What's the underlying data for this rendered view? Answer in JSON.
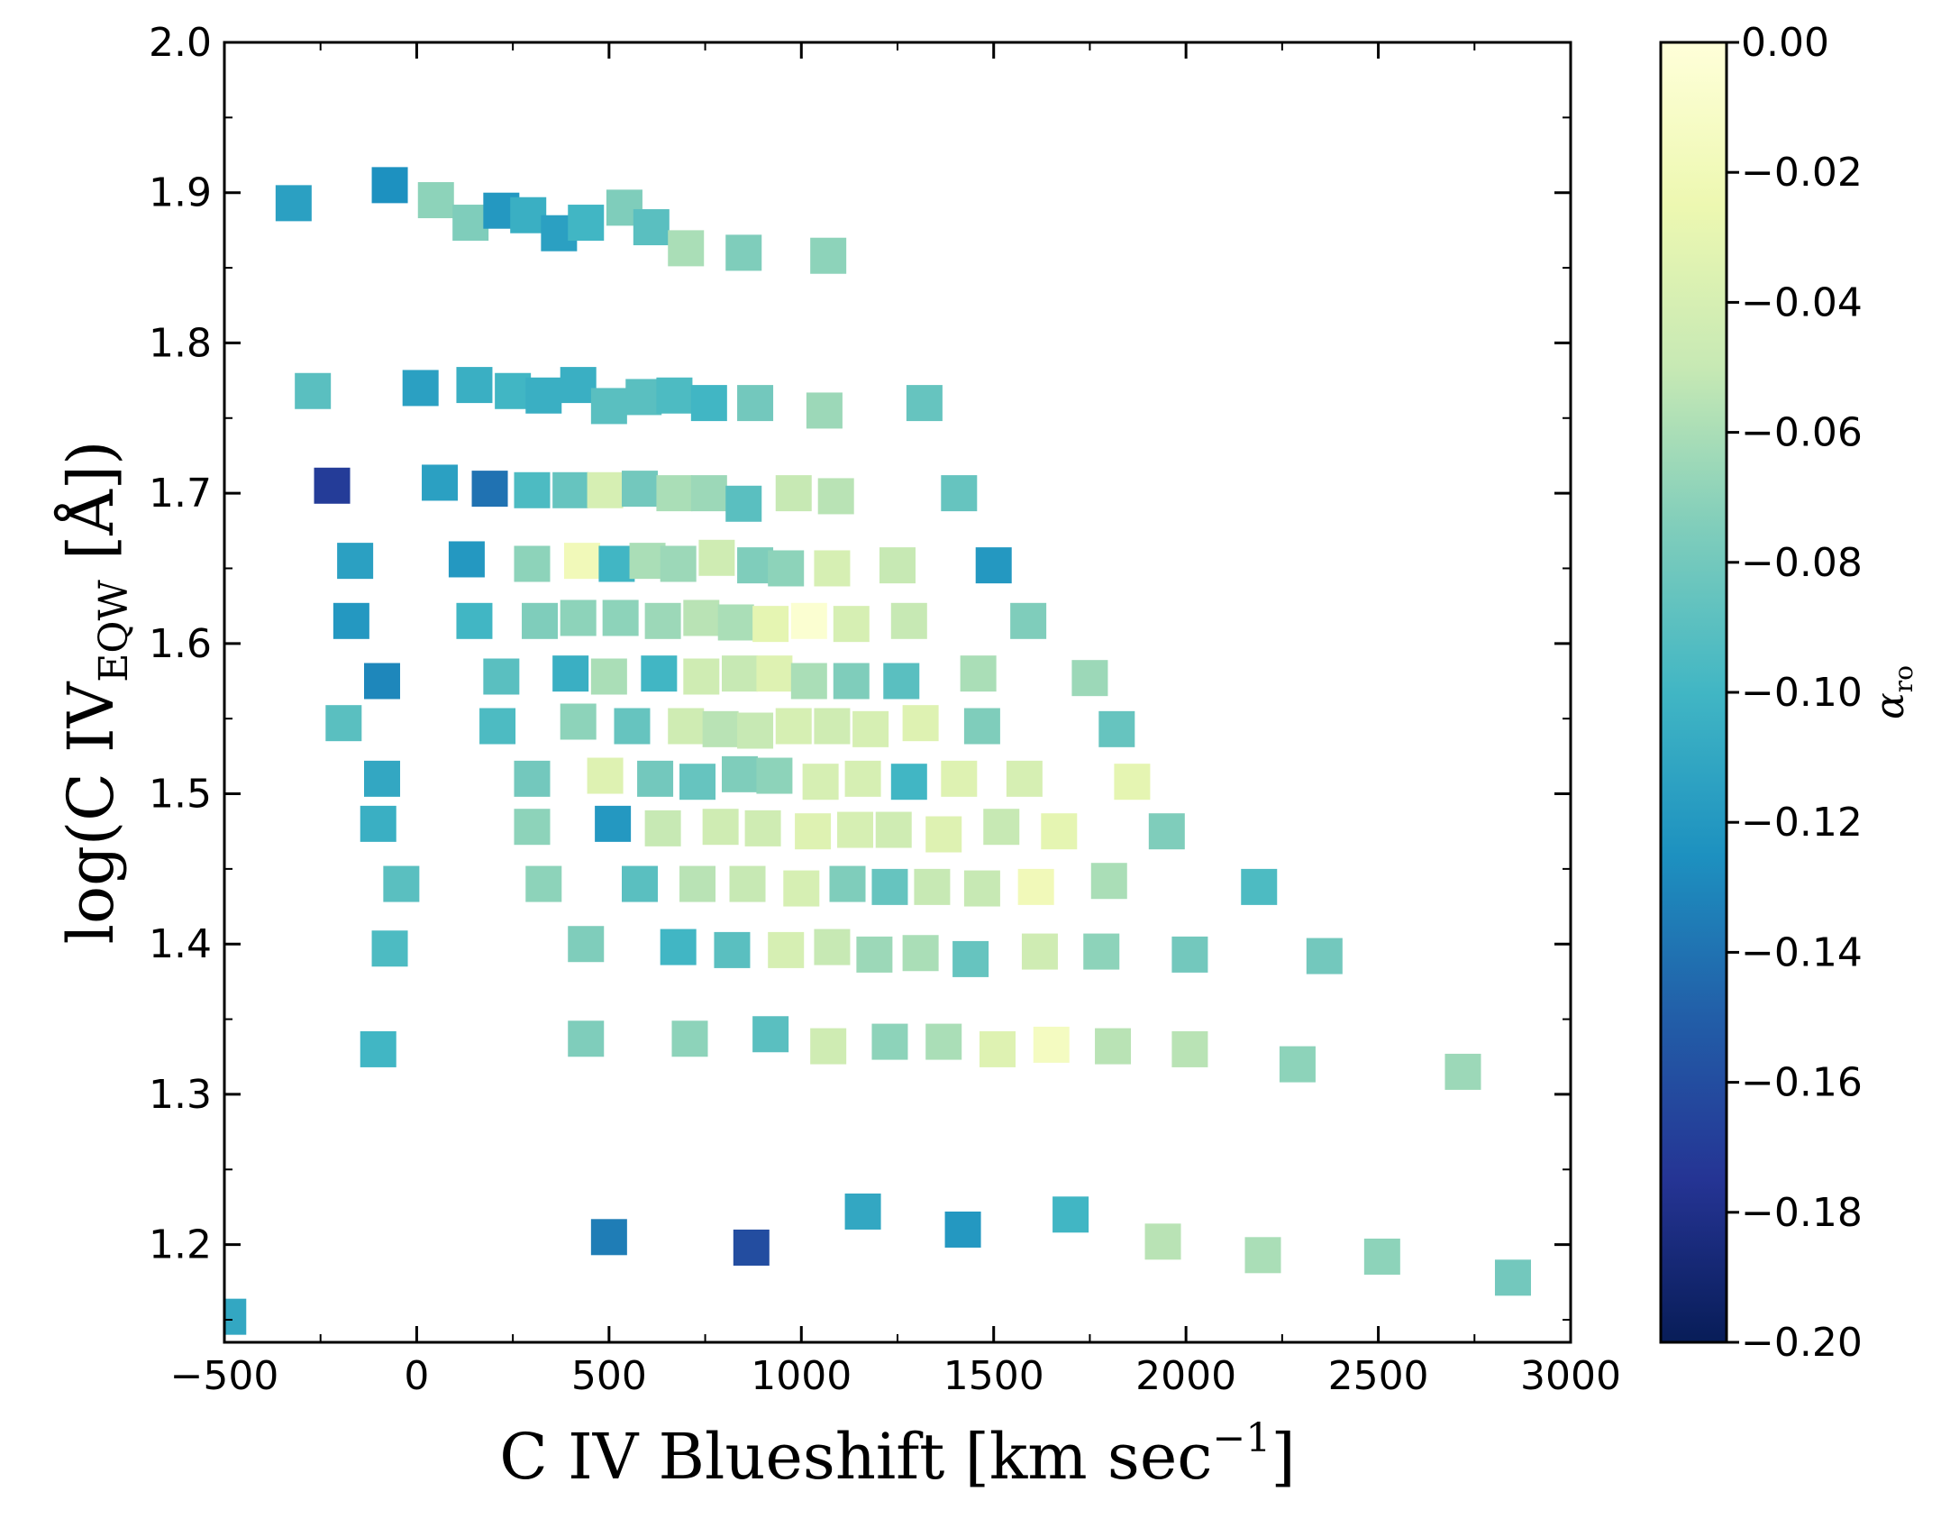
{
  "chart_data": {
    "type": "scatter",
    "title": "",
    "xlabel": {
      "before": "C IV Blueshift [km sec",
      "sup": "−1",
      "after": "]"
    },
    "ylabel": {
      "before": "log(C IV",
      "sub": "EQW",
      "after": " [Å])"
    },
    "xlim": [
      -500,
      3000
    ],
    "ylim": [
      1.135,
      2.0
    ],
    "xticks": [
      -500,
      0,
      500,
      1000,
      1500,
      2000,
      2500,
      3000
    ],
    "xtick_labels": [
      "−500",
      "0",
      "500",
      "1000",
      "1500",
      "2000",
      "2500",
      "3000"
    ],
    "yticks": [
      1.2,
      1.3,
      1.4,
      1.5,
      1.6,
      1.7,
      1.8,
      1.9,
      2.0
    ],
    "ytick_labels": [
      "1.2",
      "1.3",
      "1.4",
      "1.5",
      "1.6",
      "1.7",
      "1.8",
      "1.9",
      "2.0"
    ],
    "marker": "square",
    "colorbar": {
      "label_base": "α",
      "label_sub": "ro",
      "colormap": "YlGnBu_r",
      "range": [
        -0.2,
        0.0
      ],
      "ticks": [
        0.0,
        -0.02,
        -0.04,
        -0.06,
        -0.08,
        -0.1,
        -0.12,
        -0.14,
        -0.16,
        -0.18,
        -0.2
      ],
      "tick_labels": [
        "0.00",
        "−0.02",
        "−0.04",
        "−0.06",
        "−0.08",
        "−0.10",
        "−0.12",
        "−0.14",
        "−0.16",
        "−0.18",
        "−0.20"
      ],
      "stops": [
        "#081d58",
        "#253494",
        "#225ea8",
        "#1d91c0",
        "#41b6c4",
        "#7fcdbb",
        "#c7e9b4",
        "#edf8b1",
        "#ffffd9"
      ]
    },
    "points": [
      {
        "x": -320,
        "y": 1.893,
        "c": -0.115
      },
      {
        "x": -70,
        "y": 1.905,
        "c": -0.125
      },
      {
        "x": 50,
        "y": 1.895,
        "c": -0.07
      },
      {
        "x": 140,
        "y": 1.88,
        "c": -0.075
      },
      {
        "x": 220,
        "y": 1.888,
        "c": -0.12
      },
      {
        "x": 290,
        "y": 1.885,
        "c": -0.105
      },
      {
        "x": 370,
        "y": 1.873,
        "c": -0.115
      },
      {
        "x": 440,
        "y": 1.88,
        "c": -0.1
      },
      {
        "x": 540,
        "y": 1.89,
        "c": -0.075
      },
      {
        "x": 610,
        "y": 1.877,
        "c": -0.09
      },
      {
        "x": 700,
        "y": 1.863,
        "c": -0.06
      },
      {
        "x": 850,
        "y": 1.86,
        "c": -0.075
      },
      {
        "x": 1070,
        "y": 1.858,
        "c": -0.07
      },
      {
        "x": -270,
        "y": 1.768,
        "c": -0.09
      },
      {
        "x": 10,
        "y": 1.77,
        "c": -0.115
      },
      {
        "x": 150,
        "y": 1.772,
        "c": -0.105
      },
      {
        "x": 250,
        "y": 1.768,
        "c": -0.1
      },
      {
        "x": 330,
        "y": 1.765,
        "c": -0.105
      },
      {
        "x": 420,
        "y": 1.772,
        "c": -0.105
      },
      {
        "x": 500,
        "y": 1.758,
        "c": -0.09
      },
      {
        "x": 590,
        "y": 1.764,
        "c": -0.09
      },
      {
        "x": 670,
        "y": 1.765,
        "c": -0.095
      },
      {
        "x": 760,
        "y": 1.76,
        "c": -0.1
      },
      {
        "x": 880,
        "y": 1.76,
        "c": -0.08
      },
      {
        "x": 1060,
        "y": 1.755,
        "c": -0.065
      },
      {
        "x": 1320,
        "y": 1.76,
        "c": -0.085
      },
      {
        "x": -220,
        "y": 1.705,
        "c": -0.17
      },
      {
        "x": 60,
        "y": 1.707,
        "c": -0.115
      },
      {
        "x": 190,
        "y": 1.703,
        "c": -0.14
      },
      {
        "x": 300,
        "y": 1.702,
        "c": -0.095
      },
      {
        "x": 400,
        "y": 1.702,
        "c": -0.085
      },
      {
        "x": 490,
        "y": 1.702,
        "c": -0.04
      },
      {
        "x": 580,
        "y": 1.703,
        "c": -0.08
      },
      {
        "x": 670,
        "y": 1.7,
        "c": -0.06
      },
      {
        "x": 760,
        "y": 1.7,
        "c": -0.065
      },
      {
        "x": 850,
        "y": 1.693,
        "c": -0.09
      },
      {
        "x": 980,
        "y": 1.7,
        "c": -0.05
      },
      {
        "x": 1090,
        "y": 1.698,
        "c": -0.055
      },
      {
        "x": 1410,
        "y": 1.7,
        "c": -0.085
      },
      {
        "x": -160,
        "y": 1.655,
        "c": -0.115
      },
      {
        "x": 130,
        "y": 1.656,
        "c": -0.12
      },
      {
        "x": 300,
        "y": 1.653,
        "c": -0.07
      },
      {
        "x": 430,
        "y": 1.655,
        "c": -0.02
      },
      {
        "x": 520,
        "y": 1.653,
        "c": -0.1
      },
      {
        "x": 600,
        "y": 1.655,
        "c": -0.06
      },
      {
        "x": 680,
        "y": 1.653,
        "c": -0.065
      },
      {
        "x": 780,
        "y": 1.657,
        "c": -0.045
      },
      {
        "x": 880,
        "y": 1.652,
        "c": -0.075
      },
      {
        "x": 960,
        "y": 1.65,
        "c": -0.07
      },
      {
        "x": 1080,
        "y": 1.65,
        "c": -0.04
      },
      {
        "x": 1250,
        "y": 1.652,
        "c": -0.05
      },
      {
        "x": 1500,
        "y": 1.652,
        "c": -0.12
      },
      {
        "x": -170,
        "y": 1.615,
        "c": -0.12
      },
      {
        "x": 150,
        "y": 1.615,
        "c": -0.1
      },
      {
        "x": 320,
        "y": 1.615,
        "c": -0.075
      },
      {
        "x": 420,
        "y": 1.617,
        "c": -0.07
      },
      {
        "x": 530,
        "y": 1.617,
        "c": -0.07
      },
      {
        "x": 640,
        "y": 1.615,
        "c": -0.065
      },
      {
        "x": 740,
        "y": 1.617,
        "c": -0.055
      },
      {
        "x": 830,
        "y": 1.614,
        "c": -0.06
      },
      {
        "x": 920,
        "y": 1.613,
        "c": -0.03
      },
      {
        "x": 1020,
        "y": 1.615,
        "c": -0.005
      },
      {
        "x": 1130,
        "y": 1.613,
        "c": -0.04
      },
      {
        "x": 1280,
        "y": 1.615,
        "c": -0.05
      },
      {
        "x": 1590,
        "y": 1.615,
        "c": -0.075
      },
      {
        "x": -90,
        "y": 1.575,
        "c": -0.13
      },
      {
        "x": 220,
        "y": 1.578,
        "c": -0.09
      },
      {
        "x": 400,
        "y": 1.58,
        "c": -0.105
      },
      {
        "x": 500,
        "y": 1.578,
        "c": -0.06
      },
      {
        "x": 630,
        "y": 1.58,
        "c": -0.1
      },
      {
        "x": 740,
        "y": 1.578,
        "c": -0.045
      },
      {
        "x": 840,
        "y": 1.58,
        "c": -0.05
      },
      {
        "x": 930,
        "y": 1.58,
        "c": -0.035
      },
      {
        "x": 1020,
        "y": 1.575,
        "c": -0.06
      },
      {
        "x": 1130,
        "y": 1.575,
        "c": -0.075
      },
      {
        "x": 1260,
        "y": 1.575,
        "c": -0.09
      },
      {
        "x": 1460,
        "y": 1.58,
        "c": -0.06
      },
      {
        "x": 1750,
        "y": 1.577,
        "c": -0.065
      },
      {
        "x": -190,
        "y": 1.547,
        "c": -0.09
      },
      {
        "x": 210,
        "y": 1.545,
        "c": -0.095
      },
      {
        "x": 420,
        "y": 1.548,
        "c": -0.07
      },
      {
        "x": 560,
        "y": 1.545,
        "c": -0.085
      },
      {
        "x": 700,
        "y": 1.545,
        "c": -0.045
      },
      {
        "x": 790,
        "y": 1.543,
        "c": -0.055
      },
      {
        "x": 880,
        "y": 1.542,
        "c": -0.05
      },
      {
        "x": 980,
        "y": 1.545,
        "c": -0.04
      },
      {
        "x": 1080,
        "y": 1.545,
        "c": -0.045
      },
      {
        "x": 1180,
        "y": 1.543,
        "c": -0.04
      },
      {
        "x": 1310,
        "y": 1.547,
        "c": -0.035
      },
      {
        "x": 1470,
        "y": 1.545,
        "c": -0.075
      },
      {
        "x": 1820,
        "y": 1.543,
        "c": -0.085
      },
      {
        "x": -90,
        "y": 1.51,
        "c": -0.11
      },
      {
        "x": 300,
        "y": 1.51,
        "c": -0.08
      },
      {
        "x": 490,
        "y": 1.512,
        "c": -0.035
      },
      {
        "x": 620,
        "y": 1.51,
        "c": -0.08
      },
      {
        "x": 730,
        "y": 1.508,
        "c": -0.085
      },
      {
        "x": 840,
        "y": 1.513,
        "c": -0.075
      },
      {
        "x": 930,
        "y": 1.512,
        "c": -0.07
      },
      {
        "x": 1050,
        "y": 1.508,
        "c": -0.04
      },
      {
        "x": 1160,
        "y": 1.51,
        "c": -0.04
      },
      {
        "x": 1280,
        "y": 1.508,
        "c": -0.1
      },
      {
        "x": 1410,
        "y": 1.51,
        "c": -0.035
      },
      {
        "x": 1580,
        "y": 1.51,
        "c": -0.04
      },
      {
        "x": 1860,
        "y": 1.508,
        "c": -0.03
      },
      {
        "x": -100,
        "y": 1.48,
        "c": -0.105
      },
      {
        "x": 300,
        "y": 1.478,
        "c": -0.07
      },
      {
        "x": 510,
        "y": 1.48,
        "c": -0.12
      },
      {
        "x": 640,
        "y": 1.477,
        "c": -0.05
      },
      {
        "x": 790,
        "y": 1.478,
        "c": -0.045
      },
      {
        "x": 900,
        "y": 1.477,
        "c": -0.045
      },
      {
        "x": 1030,
        "y": 1.475,
        "c": -0.035
      },
      {
        "x": 1140,
        "y": 1.476,
        "c": -0.04
      },
      {
        "x": 1240,
        "y": 1.476,
        "c": -0.045
      },
      {
        "x": 1370,
        "y": 1.473,
        "c": -0.035
      },
      {
        "x": 1520,
        "y": 1.478,
        "c": -0.05
      },
      {
        "x": 1670,
        "y": 1.475,
        "c": -0.03
      },
      {
        "x": 1950,
        "y": 1.475,
        "c": -0.075
      },
      {
        "x": -40,
        "y": 1.44,
        "c": -0.09
      },
      {
        "x": 330,
        "y": 1.44,
        "c": -0.07
      },
      {
        "x": 580,
        "y": 1.44,
        "c": -0.09
      },
      {
        "x": 730,
        "y": 1.44,
        "c": -0.055
      },
      {
        "x": 860,
        "y": 1.44,
        "c": -0.05
      },
      {
        "x": 1000,
        "y": 1.437,
        "c": -0.04
      },
      {
        "x": 1120,
        "y": 1.44,
        "c": -0.075
      },
      {
        "x": 1230,
        "y": 1.438,
        "c": -0.085
      },
      {
        "x": 1340,
        "y": 1.438,
        "c": -0.05
      },
      {
        "x": 1470,
        "y": 1.437,
        "c": -0.05
      },
      {
        "x": 1610,
        "y": 1.438,
        "c": -0.02
      },
      {
        "x": 1800,
        "y": 1.442,
        "c": -0.06
      },
      {
        "x": 2190,
        "y": 1.438,
        "c": -0.095
      },
      {
        "x": -70,
        "y": 1.397,
        "c": -0.095
      },
      {
        "x": 440,
        "y": 1.4,
        "c": -0.075
      },
      {
        "x": 680,
        "y": 1.398,
        "c": -0.1
      },
      {
        "x": 820,
        "y": 1.396,
        "c": -0.09
      },
      {
        "x": 960,
        "y": 1.396,
        "c": -0.04
      },
      {
        "x": 1080,
        "y": 1.398,
        "c": -0.05
      },
      {
        "x": 1190,
        "y": 1.393,
        "c": -0.065
      },
      {
        "x": 1310,
        "y": 1.394,
        "c": -0.06
      },
      {
        "x": 1440,
        "y": 1.39,
        "c": -0.085
      },
      {
        "x": 1620,
        "y": 1.395,
        "c": -0.045
      },
      {
        "x": 1780,
        "y": 1.395,
        "c": -0.07
      },
      {
        "x": 2010,
        "y": 1.393,
        "c": -0.08
      },
      {
        "x": 2360,
        "y": 1.392,
        "c": -0.08
      },
      {
        "x": -100,
        "y": 1.33,
        "c": -0.1
      },
      {
        "x": 440,
        "y": 1.337,
        "c": -0.075
      },
      {
        "x": 710,
        "y": 1.337,
        "c": -0.07
      },
      {
        "x": 920,
        "y": 1.34,
        "c": -0.09
      },
      {
        "x": 1070,
        "y": 1.332,
        "c": -0.045
      },
      {
        "x": 1230,
        "y": 1.335,
        "c": -0.07
      },
      {
        "x": 1370,
        "y": 1.335,
        "c": -0.06
      },
      {
        "x": 1510,
        "y": 1.33,
        "c": -0.035
      },
      {
        "x": 1650,
        "y": 1.333,
        "c": -0.015
      },
      {
        "x": 1810,
        "y": 1.332,
        "c": -0.055
      },
      {
        "x": 2010,
        "y": 1.33,
        "c": -0.055
      },
      {
        "x": 2290,
        "y": 1.32,
        "c": -0.07
      },
      {
        "x": 2720,
        "y": 1.315,
        "c": -0.065
      },
      {
        "x": 500,
        "y": 1.205,
        "c": -0.135
      },
      {
        "x": 870,
        "y": 1.198,
        "c": -0.16
      },
      {
        "x": 1160,
        "y": 1.222,
        "c": -0.11
      },
      {
        "x": 1420,
        "y": 1.21,
        "c": -0.12
      },
      {
        "x": 1700,
        "y": 1.22,
        "c": -0.1
      },
      {
        "x": 1940,
        "y": 1.202,
        "c": -0.055
      },
      {
        "x": 2200,
        "y": 1.193,
        "c": -0.06
      },
      {
        "x": 2510,
        "y": 1.192,
        "c": -0.07
      },
      {
        "x": 2850,
        "y": 1.178,
        "c": -0.08
      },
      {
        "x": -490,
        "y": 1.152,
        "c": -0.11
      }
    ]
  }
}
